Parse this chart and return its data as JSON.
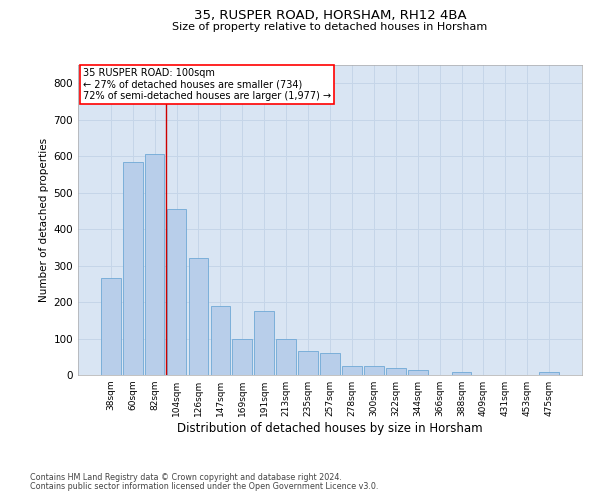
{
  "title1": "35, RUSPER ROAD, HORSHAM, RH12 4BA",
  "title2": "Size of property relative to detached houses in Horsham",
  "xlabel": "Distribution of detached houses by size in Horsham",
  "ylabel": "Number of detached properties",
  "categories": [
    "38sqm",
    "60sqm",
    "82sqm",
    "104sqm",
    "126sqm",
    "147sqm",
    "169sqm",
    "191sqm",
    "213sqm",
    "235sqm",
    "257sqm",
    "278sqm",
    "300sqm",
    "322sqm",
    "344sqm",
    "366sqm",
    "388sqm",
    "409sqm",
    "431sqm",
    "453sqm",
    "475sqm"
  ],
  "values": [
    265,
    585,
    605,
    455,
    320,
    190,
    100,
    175,
    100,
    65,
    60,
    25,
    25,
    20,
    13,
    0,
    8,
    0,
    0,
    0,
    8
  ],
  "bar_color": "#b8ceea",
  "bar_edge_color": "#6fa8d6",
  "grid_color": "#c5d5e8",
  "background_color": "#d9e5f3",
  "vline_color": "#cc0000",
  "vline_x": 2.5,
  "annotation_text1": "35 RUSPER ROAD: 100sqm",
  "annotation_text2": "← 27% of detached houses are smaller (734)",
  "annotation_text3": "72% of semi-detached houses are larger (1,977) →",
  "footnote1": "Contains HM Land Registry data © Crown copyright and database right 2024.",
  "footnote2": "Contains public sector information licensed under the Open Government Licence v3.0.",
  "ylim": [
    0,
    850
  ],
  "yticks": [
    0,
    100,
    200,
    300,
    400,
    500,
    600,
    700,
    800
  ]
}
